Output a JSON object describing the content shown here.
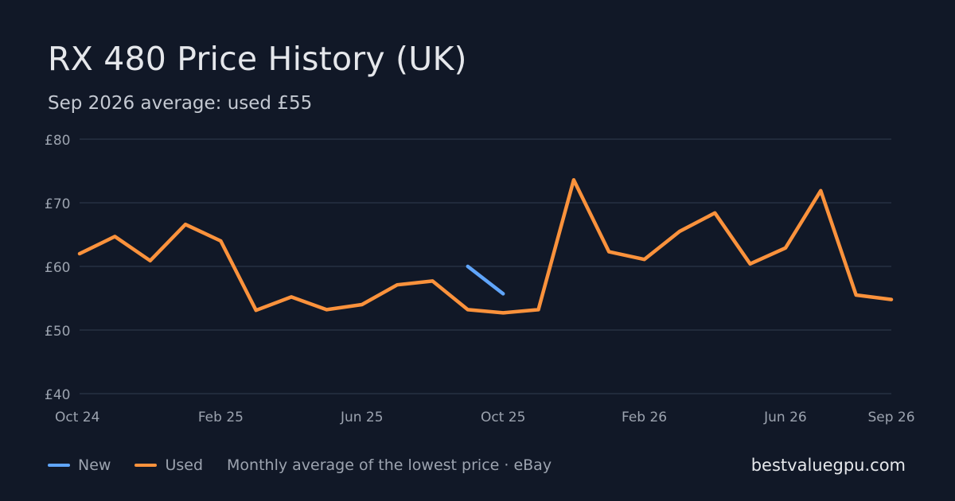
{
  "header": {
    "title": "RX 480 Price History (UK)",
    "subtitle": "Sep 2026 average: used £55"
  },
  "legend": {
    "new_label": "New",
    "used_label": "Used",
    "note": "Monthly average of the lowest price · eBay"
  },
  "site": "bestvaluegpu.com",
  "colors": {
    "background": "#111827",
    "new": "#60a5fa",
    "used": "#fb923c",
    "grid": "#273142",
    "tick": "#9ca3af"
  },
  "chart_data": {
    "type": "line",
    "currency": "£",
    "x": [
      "2024-10",
      "2024-11",
      "2024-12",
      "2025-01",
      "2025-02",
      "2025-03",
      "2025-04",
      "2025-05",
      "2025-06",
      "2025-07",
      "2025-08",
      "2025-09",
      "2025-10",
      "2025-11",
      "2025-12",
      "2026-01",
      "2026-02",
      "2026-03",
      "2026-04",
      "2026-05",
      "2026-06",
      "2026-07",
      "2026-08",
      "2026-09"
    ],
    "x_ticks": [
      {
        "x": "2024-10",
        "label": "Oct 24"
      },
      {
        "x": "2025-02",
        "label": "Feb 25"
      },
      {
        "x": "2025-06",
        "label": "Jun 25"
      },
      {
        "x": "2025-10",
        "label": "Oct 25"
      },
      {
        "x": "2026-02",
        "label": "Feb 26"
      },
      {
        "x": "2026-06",
        "label": "Jun 26"
      },
      {
        "x": "2026-09",
        "label": "Sep 26"
      }
    ],
    "y_ticks": [
      {
        "value": 40,
        "label": "£40"
      },
      {
        "value": 50,
        "label": "£50"
      },
      {
        "value": 60,
        "label": "£60"
      },
      {
        "value": 70,
        "label": "£70"
      },
      {
        "value": 80,
        "label": "£80"
      }
    ],
    "ylim": [
      40,
      80
    ],
    "grid": true,
    "legend_position": "bottom-left",
    "series": [
      {
        "name": "New",
        "color_key": "new",
        "values": [
          null,
          null,
          null,
          null,
          null,
          null,
          null,
          null,
          null,
          null,
          null,
          60.0,
          55.7,
          null,
          null,
          null,
          null,
          null,
          null,
          null,
          null,
          null,
          null,
          null
        ]
      },
      {
        "name": "Used",
        "color_key": "used",
        "values": [
          62.0,
          64.7,
          60.9,
          66.6,
          64.0,
          53.1,
          55.2,
          53.2,
          54.0,
          57.1,
          57.7,
          53.2,
          52.7,
          53.2,
          73.6,
          62.3,
          61.1,
          65.5,
          68.4,
          60.4,
          62.9,
          71.9,
          55.5,
          54.8
        ]
      }
    ]
  }
}
